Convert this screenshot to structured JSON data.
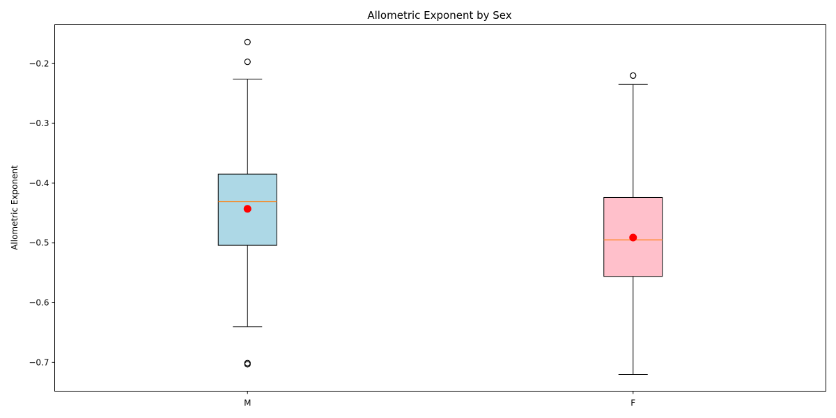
{
  "chart_data": {
    "type": "box",
    "title": "Allometric Exponent by Sex",
    "xlabel": "",
    "ylabel": "Allometric Exponent",
    "ylim": [
      -0.748,
      -0.135
    ],
    "yticks": [
      -0.7,
      -0.6,
      -0.5,
      -0.4,
      -0.3,
      -0.2
    ],
    "ytick_labels": [
      "−0.7",
      "−0.6",
      "−0.5",
      "−0.4",
      "−0.3",
      "−0.2"
    ],
    "grid": false,
    "categories": [
      "M",
      "F"
    ],
    "boxes": [
      {
        "name": "M",
        "color": "#add8e6",
        "whisker_low": -0.64,
        "q1": -0.504,
        "median": -0.431,
        "q3": -0.385,
        "whisker_high": -0.226,
        "mean": -0.443,
        "outliers": [
          -0.164,
          -0.197,
          -0.701,
          -0.703
        ]
      },
      {
        "name": "F",
        "color": "#ffc0cb",
        "whisker_low": -0.72,
        "q1": -0.556,
        "median": -0.495,
        "q3": -0.424,
        "whisker_high": -0.235,
        "mean": -0.491,
        "outliers": [
          -0.22
        ]
      }
    ],
    "median_color": "#ff7f0e",
    "mean_color": "#ff0000"
  }
}
